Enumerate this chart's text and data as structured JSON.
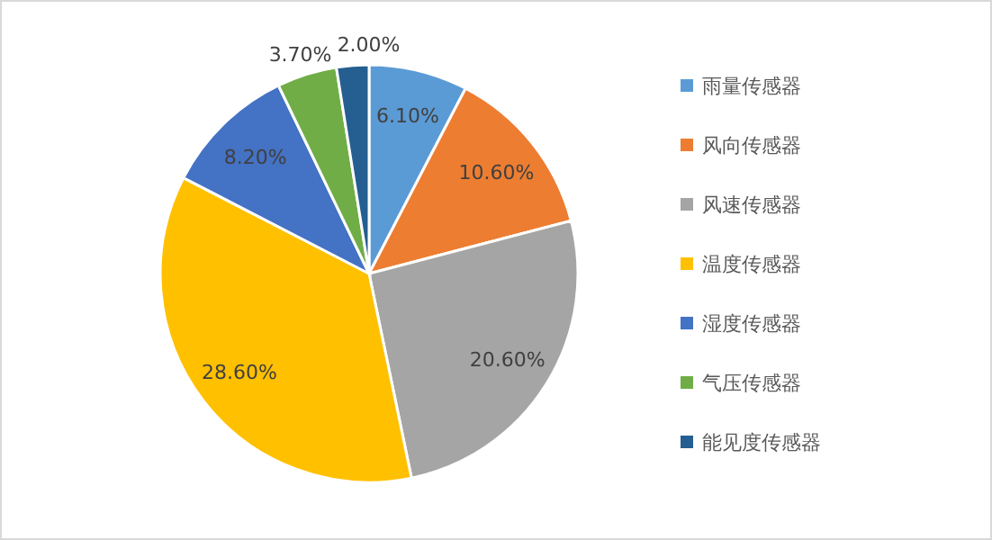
{
  "chart_data": {
    "type": "pie",
    "categories": [
      "雨量传感器",
      "风向传感器",
      "风速传感器",
      "温度传感器",
      "湿度传感器",
      "气压传感器",
      "能见度传感器"
    ],
    "values": [
      6.1,
      10.6,
      20.6,
      28.6,
      8.2,
      3.7,
      2.0
    ],
    "value_labels": [
      "6.10%",
      "10.60%",
      "20.60%",
      "28.60%",
      "8.20%",
      "3.70%",
      "2.00%"
    ],
    "colors": [
      "#5b9bd5",
      "#ed7d31",
      "#a5a5a5",
      "#ffc000",
      "#4472c4",
      "#70ad47",
      "#255e91"
    ],
    "legend": "right"
  }
}
